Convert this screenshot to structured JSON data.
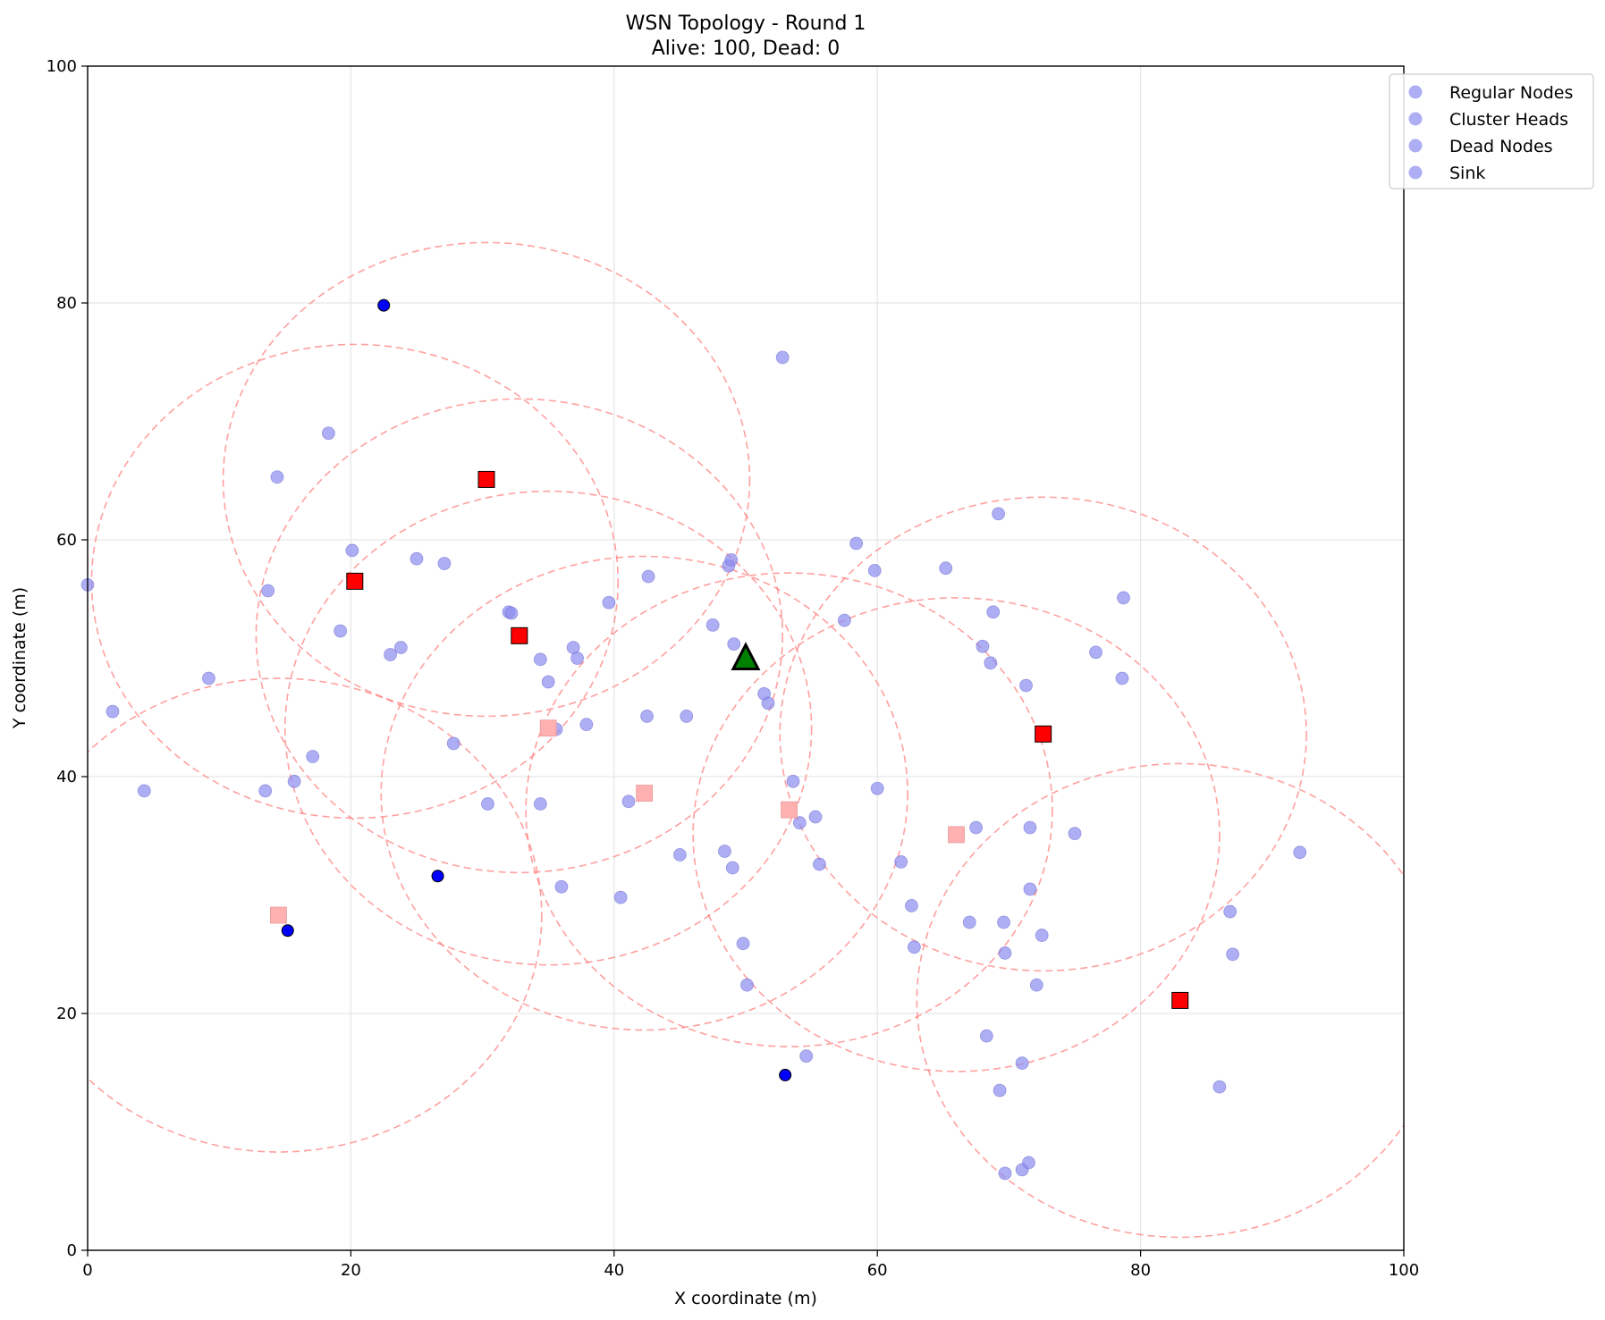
{
  "chart_data": {
    "type": "scatter",
    "title": "WSN Topology - Round 1",
    "subtitle": "Alive: 100, Dead: 0",
    "xlabel": "X coordinate (m)",
    "ylabel": "Y coordinate (m)",
    "xlim": [
      0,
      100
    ],
    "ylim": [
      0,
      100
    ],
    "xticks": [
      0,
      20,
      40,
      60,
      80,
      100
    ],
    "yticks": [
      0,
      20,
      40,
      60,
      80,
      100
    ],
    "grid": true,
    "legend": {
      "placement": "upper-right-outside",
      "entries": [
        "Regular Nodes",
        "Cluster Heads",
        "Dead Nodes",
        "Sink"
      ]
    },
    "colors": {
      "regular": "#8c8cf0",
      "blue_node": "#0000ff",
      "cluster_head": "#ff0000",
      "faded_head": "#ffb0b0",
      "range_circle": "#ff8080",
      "sink": "#008000",
      "grid": "#e6e6e6"
    },
    "regular_nodes": [
      [
        0.0,
        56.2
      ],
      [
        1.9,
        45.5
      ],
      [
        4.3,
        38.8
      ],
      [
        9.2,
        48.3
      ],
      [
        13.5,
        38.8
      ],
      [
        13.7,
        55.7
      ],
      [
        14.4,
        65.3
      ],
      [
        15.7,
        39.6
      ],
      [
        17.1,
        41.7
      ],
      [
        18.3,
        69.0
      ],
      [
        19.2,
        52.3
      ],
      [
        20.1,
        59.1
      ],
      [
        23.0,
        50.3
      ],
      [
        23.8,
        50.9
      ],
      [
        25.0,
        58.4
      ],
      [
        27.1,
        58.0
      ],
      [
        27.8,
        42.8
      ],
      [
        30.4,
        37.7
      ],
      [
        32.0,
        53.9
      ],
      [
        32.2,
        53.8
      ],
      [
        34.4,
        49.9
      ],
      [
        34.4,
        37.7
      ],
      [
        35.0,
        48.0
      ],
      [
        35.6,
        44.0
      ],
      [
        36.0,
        30.7
      ],
      [
        36.9,
        50.9
      ],
      [
        37.2,
        50.0
      ],
      [
        37.9,
        44.4
      ],
      [
        39.6,
        54.7
      ],
      [
        40.5,
        29.8
      ],
      [
        41.1,
        37.9
      ],
      [
        42.5,
        45.1
      ],
      [
        42.6,
        56.9
      ],
      [
        45.0,
        33.4
      ],
      [
        45.5,
        45.1
      ],
      [
        47.5,
        52.8
      ],
      [
        48.4,
        33.7
      ],
      [
        48.7,
        57.8
      ],
      [
        48.9,
        58.3
      ],
      [
        49.0,
        32.3
      ],
      [
        49.1,
        51.2
      ],
      [
        49.8,
        25.9
      ],
      [
        50.1,
        22.4
      ],
      [
        51.4,
        47.0
      ],
      [
        51.7,
        46.2
      ],
      [
        52.8,
        75.4
      ],
      [
        53.6,
        39.6
      ],
      [
        54.1,
        36.1
      ],
      [
        54.6,
        16.4
      ],
      [
        55.3,
        36.6
      ],
      [
        55.6,
        32.6
      ],
      [
        57.5,
        53.2
      ],
      [
        58.4,
        59.7
      ],
      [
        59.8,
        57.4
      ],
      [
        60.0,
        39.0
      ],
      [
        61.8,
        32.8
      ],
      [
        62.6,
        29.1
      ],
      [
        62.8,
        25.6
      ],
      [
        65.2,
        57.6
      ],
      [
        67.0,
        27.7
      ],
      [
        67.5,
        35.7
      ],
      [
        68.0,
        51.0
      ],
      [
        68.3,
        18.1
      ],
      [
        68.6,
        49.6
      ],
      [
        68.8,
        53.9
      ],
      [
        69.2,
        62.2
      ],
      [
        69.3,
        13.5
      ],
      [
        69.6,
        27.7
      ],
      [
        69.7,
        25.1
      ],
      [
        69.7,
        6.5
      ],
      [
        71.0,
        15.8
      ],
      [
        71.0,
        6.8
      ],
      [
        71.3,
        47.7
      ],
      [
        71.5,
        7.4
      ],
      [
        71.6,
        35.7
      ],
      [
        71.6,
        30.5
      ],
      [
        72.1,
        22.4
      ],
      [
        72.5,
        26.6
      ],
      [
        75.0,
        35.2
      ],
      [
        76.6,
        50.5
      ],
      [
        78.6,
        48.3
      ],
      [
        78.7,
        55.1
      ],
      [
        86.0,
        13.8
      ],
      [
        86.8,
        28.6
      ],
      [
        87.0,
        25.0
      ],
      [
        92.1,
        33.6
      ]
    ],
    "blue_nodes": [
      [
        22.5,
        79.8
      ],
      [
        26.6,
        31.6
      ],
      [
        15.2,
        27.0
      ],
      [
        53.0,
        14.8
      ]
    ],
    "cluster_heads": [
      [
        30.3,
        65.1
      ],
      [
        20.3,
        56.5
      ],
      [
        32.8,
        51.9
      ],
      [
        72.6,
        43.6
      ],
      [
        83.0,
        21.1
      ]
    ],
    "faded_heads": [
      [
        35.0,
        44.1
      ],
      [
        42.3,
        38.6
      ],
      [
        53.3,
        37.2
      ],
      [
        66.0,
        35.1
      ],
      [
        14.5,
        28.3
      ]
    ],
    "range_circles": [
      {
        "center": [
          30.3,
          65.1
        ],
        "radius": 20.0
      },
      {
        "center": [
          20.3,
          56.5
        ],
        "radius": 20.0
      },
      {
        "center": [
          32.8,
          51.9
        ],
        "radius": 20.0
      },
      {
        "center": [
          72.6,
          43.6
        ],
        "radius": 20.0
      },
      {
        "center": [
          83.0,
          21.1
        ],
        "radius": 20.0
      },
      {
        "center": [
          35.0,
          44.1
        ],
        "radius": 20.0
      },
      {
        "center": [
          42.3,
          38.6
        ],
        "radius": 20.0
      },
      {
        "center": [
          53.3,
          37.2
        ],
        "radius": 20.0
      },
      {
        "center": [
          66.0,
          35.1
        ],
        "radius": 20.0
      },
      {
        "center": [
          14.5,
          28.3
        ],
        "radius": 20.0
      }
    ],
    "sink": [
      50.0,
      50.0
    ]
  }
}
